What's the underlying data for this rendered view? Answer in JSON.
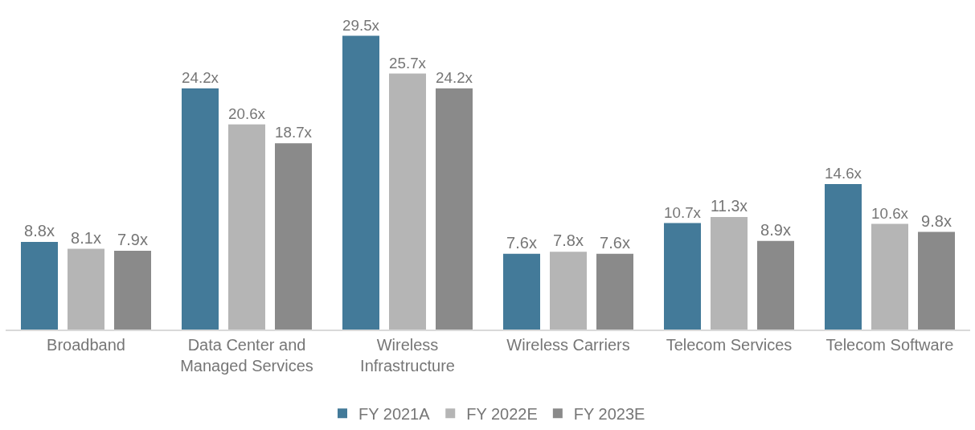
{
  "chart_data": {
    "type": "bar",
    "categories": [
      "Broadband",
      "Data Center and Managed Services",
      "Wireless Infrastructure",
      "Wireless Carriers",
      "Telecom Services",
      "Telecom Software"
    ],
    "series": [
      {
        "name": "FY 2021A",
        "color": "#437a99",
        "values": [
          8.8,
          24.2,
          29.5,
          7.6,
          10.7,
          14.6
        ],
        "value_labels": [
          "8.8x",
          "24.2x",
          "29.5x",
          "7.6x",
          "10.7x",
          "14.6x"
        ]
      },
      {
        "name": "FY 2022E",
        "color": "#b5b5b5",
        "values": [
          8.1,
          20.6,
          25.7,
          7.8,
          11.3,
          10.6
        ],
        "value_labels": [
          "8.1x",
          "20.6x",
          "25.7x",
          "7.8x",
          "11.3x",
          "10.6x"
        ]
      },
      {
        "name": "FY 2023E",
        "color": "#8a8a8a",
        "values": [
          7.9,
          18.7,
          24.2,
          7.6,
          8.9,
          9.8
        ],
        "value_labels": [
          "7.9x",
          "18.7x",
          "24.2x",
          "7.6x",
          "8.9x",
          "9.8x"
        ]
      }
    ],
    "ylim": [
      0,
      33
    ],
    "tick_labels": "x",
    "legend": "bottom"
  }
}
